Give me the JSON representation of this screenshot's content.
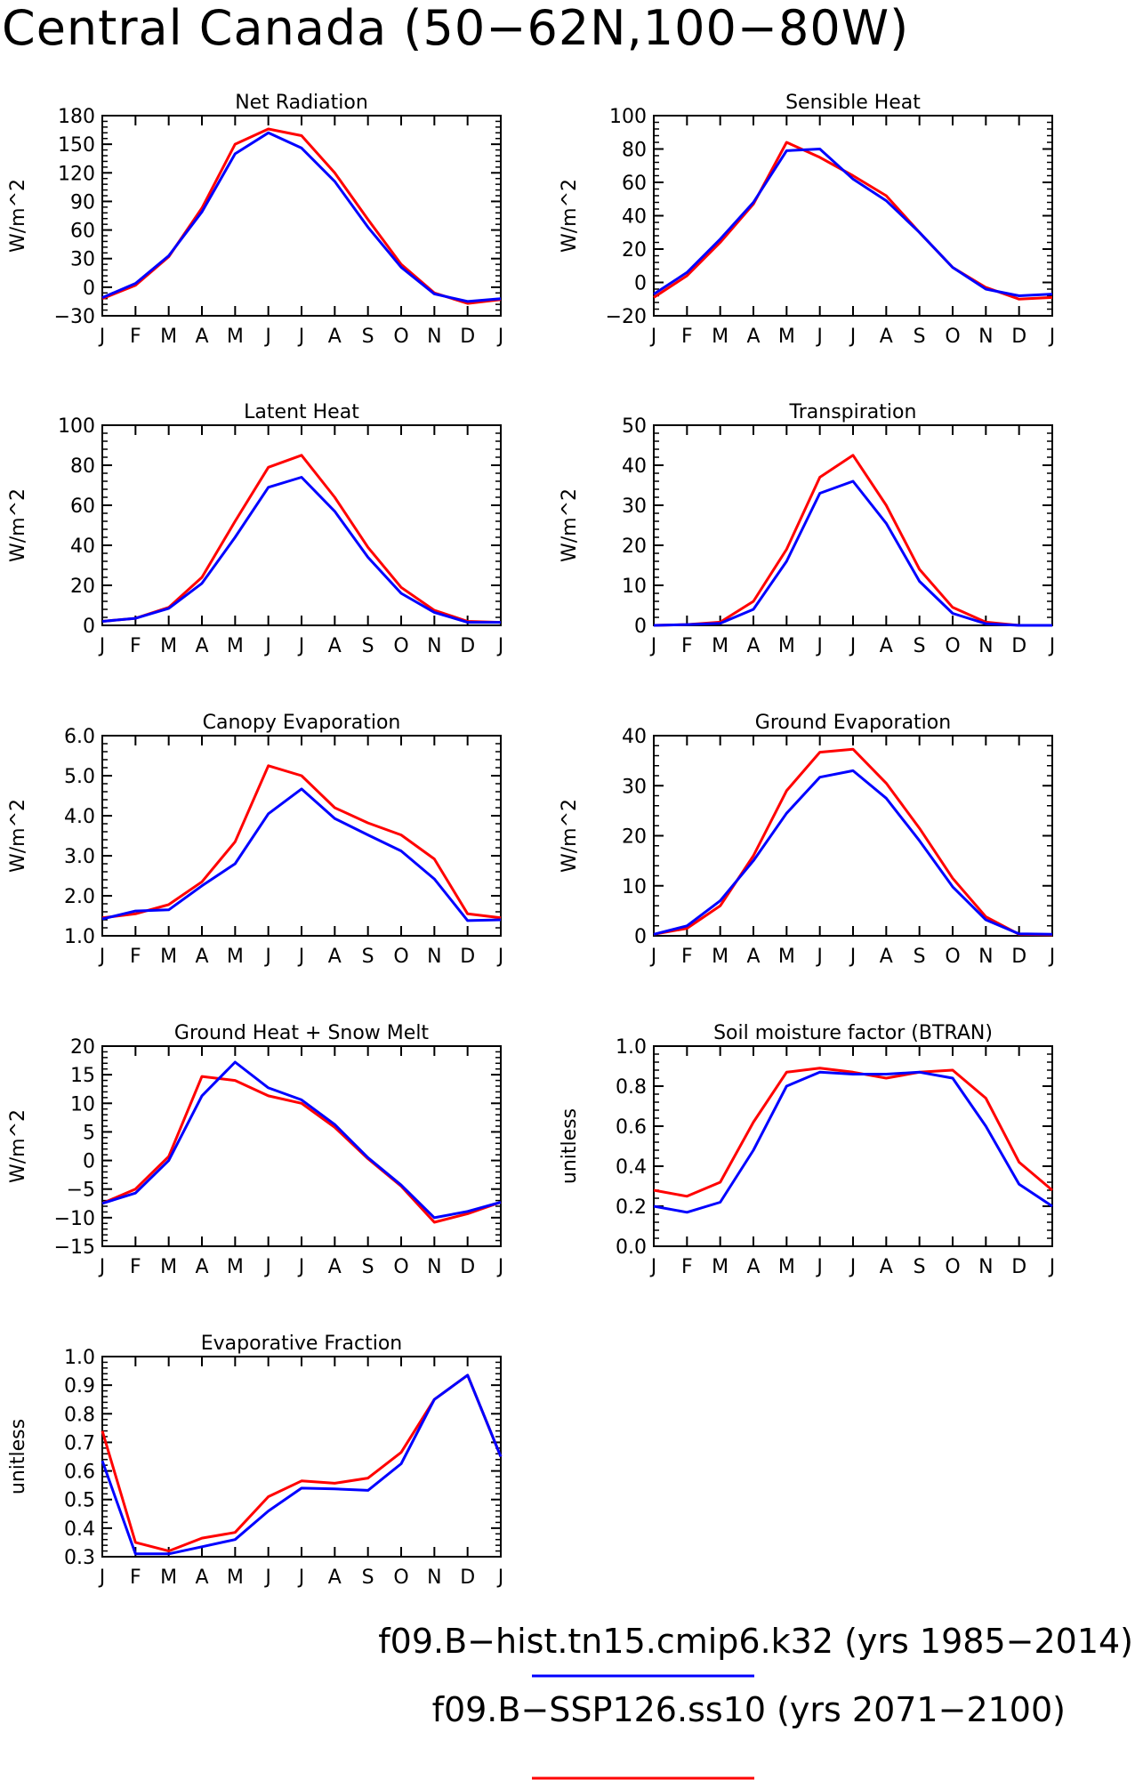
{
  "figure": {
    "title": "Central Canada (50−62N,100−80W)",
    "months": [
      "J",
      "F",
      "M",
      "A",
      "M",
      "J",
      "J",
      "A",
      "S",
      "O",
      "N",
      "D",
      "J"
    ],
    "legend": [
      {
        "label": "f09.B−hist.tn15.cmip6.k32 (yrs 1985−2014)",
        "color": "#0000ff"
      },
      {
        "label": "f09.B−SSP126.ss10 (yrs 2071−2100)",
        "color": "#ff0000"
      }
    ]
  },
  "chart_data": [
    {
      "type": "line",
      "title": "Net Radiation",
      "ylabel": "W/m^2",
      "ylim": [
        -30,
        180
      ],
      "yticks": [
        -30,
        0,
        30,
        60,
        90,
        120,
        150,
        180
      ],
      "ytick_labels": [
        "−30",
        "0",
        "30",
        "60",
        "90",
        "120",
        "150",
        "180"
      ],
      "series": [
        {
          "color": "#ff0000",
          "values": [
            -12,
            2,
            32,
            83,
            150,
            166,
            159,
            120,
            71,
            24,
            -6,
            -17,
            -13
          ]
        },
        {
          "color": "#0000ff",
          "values": [
            -11,
            4,
            33,
            79,
            140,
            162,
            146,
            111,
            63,
            21,
            -7,
            -15,
            -12
          ]
        }
      ]
    },
    {
      "type": "line",
      "title": "Sensible Heat",
      "ylabel": "W/m^2",
      "ylim": [
        -20,
        100
      ],
      "yticks": [
        -20,
        0,
        20,
        40,
        60,
        80,
        100
      ],
      "ytick_labels": [
        "−20",
        "0",
        "20",
        "40",
        "60",
        "80",
        "100"
      ],
      "series": [
        {
          "color": "#ff0000",
          "values": [
            -9,
            4,
            24,
            47,
            84,
            75,
            64,
            52,
            30,
            9,
            -3,
            -10,
            -9
          ]
        },
        {
          "color": "#0000ff",
          "values": [
            -7,
            6,
            26,
            48,
            79,
            80,
            62,
            49,
            30,
            9,
            -4,
            -8,
            -7
          ]
        }
      ]
    },
    {
      "type": "line",
      "title": "Latent Heat",
      "ylabel": "W/m^2",
      "ylim": [
        0,
        100
      ],
      "yticks": [
        0,
        20,
        40,
        60,
        80,
        100
      ],
      "ytick_labels": [
        "0",
        "20",
        "40",
        "60",
        "80",
        "100"
      ],
      "series": [
        {
          "color": "#ff0000",
          "values": [
            2,
            3.5,
            9,
            24,
            52,
            79,
            85,
            64,
            39,
            19,
            7.5,
            2,
            1.5
          ]
        },
        {
          "color": "#0000ff",
          "values": [
            2,
            3.5,
            8.5,
            21,
            44,
            69,
            74,
            57,
            34,
            16,
            6.5,
            1.5,
            1.5
          ]
        }
      ]
    },
    {
      "type": "line",
      "title": "Transpiration",
      "ylabel": "W/m^2",
      "ylim": [
        0,
        50
      ],
      "yticks": [
        0,
        10,
        20,
        30,
        40,
        50
      ],
      "ytick_labels": [
        "0",
        "10",
        "20",
        "30",
        "40",
        "50"
      ],
      "series": [
        {
          "color": "#ff0000",
          "values": [
            0,
            0.2,
            0.8,
            6,
            19,
            37,
            42.5,
            30,
            14,
            4.5,
            0.8,
            0,
            0
          ]
        },
        {
          "color": "#0000ff",
          "values": [
            0,
            0.2,
            0.5,
            4,
            16,
            33,
            36,
            25.5,
            11,
            3,
            0.4,
            0,
            0
          ]
        }
      ]
    },
    {
      "type": "line",
      "title": "Canopy Evaporation",
      "ylabel": "W/m^2",
      "ylim": [
        1.0,
        6.0
      ],
      "yticks": [
        1.0,
        2.0,
        3.0,
        4.0,
        5.0,
        6.0
      ],
      "ytick_labels": [
        "1.0",
        "2.0",
        "3.0",
        "4.0",
        "5.0",
        "6.0"
      ],
      "series": [
        {
          "color": "#ff0000",
          "values": [
            1.45,
            1.55,
            1.78,
            2.35,
            3.35,
            5.25,
            5.0,
            4.2,
            3.82,
            3.52,
            2.92,
            1.55,
            1.45
          ]
        },
        {
          "color": "#0000ff",
          "values": [
            1.42,
            1.62,
            1.65,
            2.25,
            2.8,
            4.05,
            4.67,
            3.93,
            3.52,
            3.12,
            2.42,
            1.38,
            1.4
          ]
        }
      ]
    },
    {
      "type": "line",
      "title": "Ground Evaporation",
      "ylabel": "W/m^2",
      "ylim": [
        0,
        40
      ],
      "yticks": [
        0,
        10,
        20,
        30,
        40
      ],
      "ytick_labels": [
        "0",
        "10",
        "20",
        "30",
        "40"
      ],
      "series": [
        {
          "color": "#ff0000",
          "values": [
            0.3,
            1.5,
            6,
            16,
            29,
            36.7,
            37.3,
            30.5,
            21.5,
            11.5,
            3.8,
            0.3,
            0.2
          ]
        },
        {
          "color": "#0000ff",
          "values": [
            0.3,
            2,
            7,
            15,
            24.5,
            31.7,
            33,
            27.5,
            19,
            9.8,
            3.2,
            0.4,
            0.3
          ]
        }
      ]
    },
    {
      "type": "line",
      "title": "Ground Heat + Snow Melt",
      "ylabel": "W/m^2",
      "ylim": [
        -15,
        20
      ],
      "yticks": [
        -15,
        -10,
        -5,
        0,
        5,
        10,
        15,
        20
      ],
      "ytick_labels": [
        "−15",
        "−10",
        "−5",
        "0",
        "5",
        "10",
        "15",
        "20"
      ],
      "series": [
        {
          "color": "#ff0000",
          "values": [
            -7.5,
            -5,
            0.7,
            14.7,
            14,
            11.3,
            10,
            5.8,
            0.3,
            -4.5,
            -10.8,
            -9.3,
            -7.3
          ]
        },
        {
          "color": "#0000ff",
          "values": [
            -7.5,
            -5.7,
            0,
            11.3,
            17.2,
            12.7,
            10.6,
            6.3,
            0.5,
            -4.3,
            -10,
            -8.9,
            -7.3
          ]
        }
      ]
    },
    {
      "type": "line",
      "title": "Soil moisture factor (BTRAN)",
      "ylabel": "unitless",
      "ylim": [
        0.0,
        1.0
      ],
      "yticks": [
        0.0,
        0.2,
        0.4,
        0.6,
        0.8,
        1.0
      ],
      "ytick_labels": [
        "0.0",
        "0.2",
        "0.4",
        "0.6",
        "0.8",
        "1.0"
      ],
      "series": [
        {
          "color": "#ff0000",
          "values": [
            0.28,
            0.25,
            0.32,
            0.62,
            0.87,
            0.89,
            0.87,
            0.84,
            0.87,
            0.88,
            0.74,
            0.42,
            0.28
          ]
        },
        {
          "color": "#0000ff",
          "values": [
            0.2,
            0.17,
            0.22,
            0.48,
            0.8,
            0.87,
            0.86,
            0.86,
            0.87,
            0.84,
            0.6,
            0.31,
            0.2
          ]
        }
      ]
    },
    {
      "type": "line",
      "title": "Evaporative Fraction",
      "ylabel": "unitless",
      "ylim": [
        0.3,
        1.0
      ],
      "yticks": [
        0.3,
        0.4,
        0.5,
        0.6,
        0.7,
        0.8,
        0.9,
        1.0
      ],
      "ytick_labels": [
        "0.3",
        "0.4",
        "0.5",
        "0.6",
        "0.7",
        "0.8",
        "0.9",
        "1.0"
      ],
      "series": [
        {
          "color": "#ff0000",
          "values": [
            0.74,
            0.35,
            0.32,
            0.365,
            0.385,
            0.51,
            0.565,
            0.557,
            0.575,
            0.665,
            0.85,
            0.935,
            0.65
          ]
        },
        {
          "color": "#0000ff",
          "values": [
            0.635,
            0.31,
            0.31,
            0.335,
            0.36,
            0.46,
            0.54,
            0.537,
            0.532,
            0.625,
            0.85,
            0.935,
            0.65
          ]
        }
      ]
    }
  ]
}
